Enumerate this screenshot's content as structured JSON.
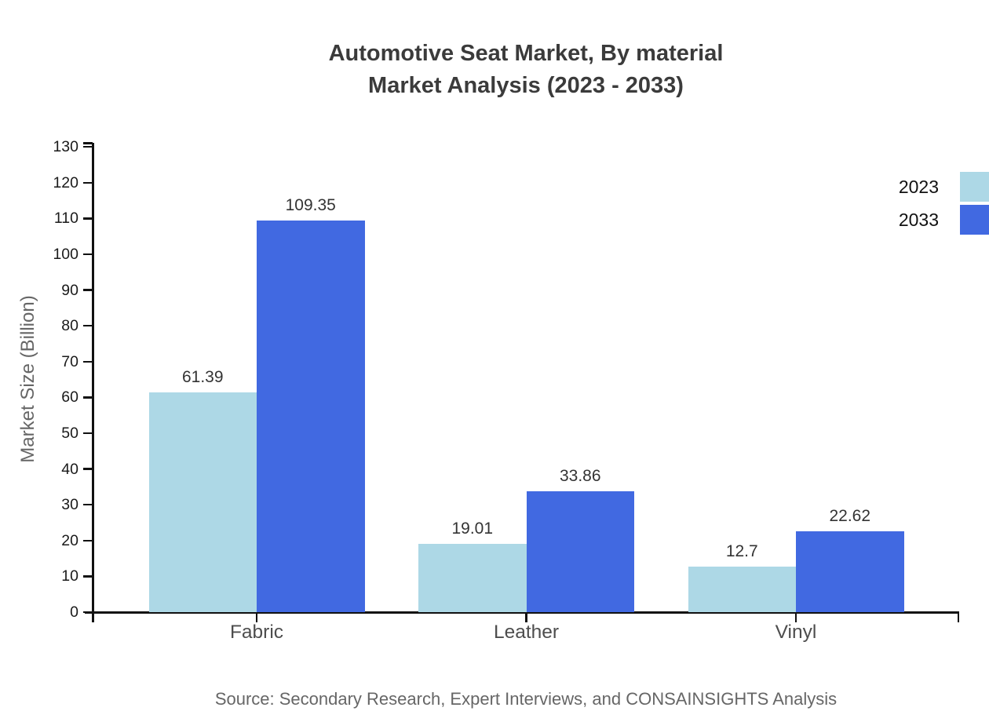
{
  "header": {
    "line1": "Automotive Seat Market, By material",
    "line2": "Market Analysis (2023 - 2033)"
  },
  "chart_data": {
    "type": "bar",
    "title": "Automotive Seat Market, By material Market Analysis (2023 - 2033)",
    "categories": [
      "Fabric",
      "Leather",
      "Vinyl"
    ],
    "series": [
      {
        "name": "2023",
        "color": "#add8e6",
        "values": [
          61.39,
          19.01,
          12.7
        ]
      },
      {
        "name": "2033",
        "color": "#4169e1",
        "values": [
          109.35,
          33.86,
          22.62
        ]
      }
    ],
    "xlabel": "",
    "ylabel": "Market Size (Billion)",
    "ylim": [
      0,
      130
    ],
    "ytick_step": 10,
    "ytick_labels": [
      "0",
      "10",
      "20",
      "30",
      "40",
      "50",
      "60",
      "70",
      "80",
      "90",
      "100",
      "110",
      "120",
      "130"
    ],
    "grid": false,
    "legend_position": "top-right",
    "bar_value_labels": true
  },
  "source_note": "Source: Secondary Research, Expert Interviews, and CONSAINSIGHTS Analysis",
  "colors": {
    "series_2023": "#add8e6",
    "series_2033": "#4169e1",
    "title_text": "#3b3b3b",
    "axis": "#111111",
    "ytick_text": "#1a1a1a",
    "category_text": "#4d4d4d",
    "value_label_text": "#333333",
    "ylabel_text": "#666666",
    "source_text": "#666666",
    "background": "#ffffff"
  }
}
